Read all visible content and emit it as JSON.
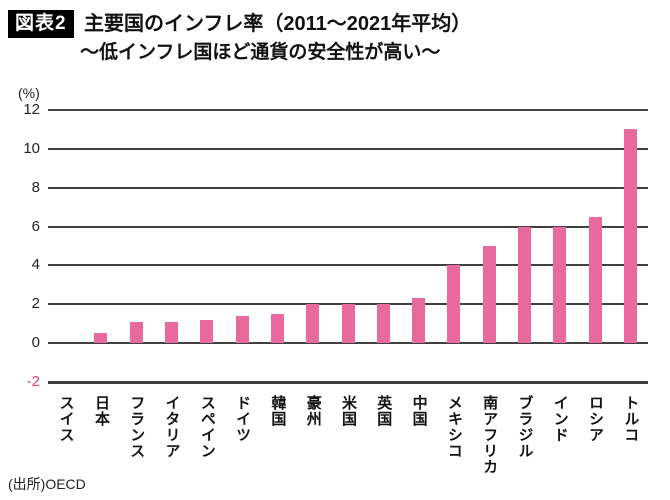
{
  "figure": {
    "badge": "図表2",
    "title": "主要国のインフレ率（2011～2021年平均）",
    "subtitle": "～低インフレ国ほど通貨の安全性が高い～",
    "source": "(出所)OECD"
  },
  "chart_data": {
    "type": "bar",
    "title": "主要国のインフレ率（2011～2021年平均）",
    "subtitle": "～低インフレ国ほど通貨の安全性が高い～",
    "unit_label": "(%)",
    "categories": [
      "スイス",
      "日本",
      "フランス",
      "イタリア",
      "スペイン",
      "ドイツ",
      "韓国",
      "豪州",
      "米国",
      "英国",
      "中国",
      "メキシコ",
      "南アフリカ",
      "ブラジル",
      "インド",
      "ロシア",
      "トルコ"
    ],
    "values": [
      0,
      0.5,
      1.1,
      1.1,
      1.2,
      1.4,
      1.5,
      2.0,
      2.0,
      2.0,
      2.3,
      4.0,
      5.0,
      6.0,
      6.0,
      6.5,
      11.0
    ],
    "xlabel": "",
    "ylabel": "(%)",
    "ylim": [
      -2,
      12
    ],
    "yticks": [
      12,
      10,
      8,
      6,
      4,
      2,
      0,
      -2
    ],
    "grid": true,
    "legend": false,
    "colors": {
      "bar": "#e8699d",
      "grid": "#404040",
      "tick_text": "#222222",
      "negative_tick_text": "#dd4379"
    },
    "source": "(出所)OECD"
  }
}
